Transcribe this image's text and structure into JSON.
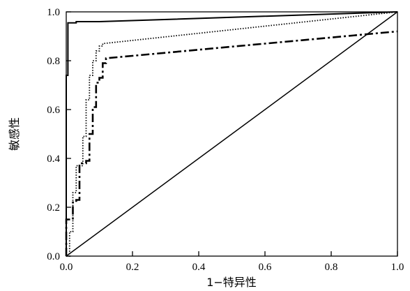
{
  "chart_data": {
    "type": "line",
    "title": "",
    "xlabel": "1−特异性",
    "ylabel": "敏感性",
    "xlim": [
      0,
      1
    ],
    "ylim": [
      0,
      1
    ],
    "x_ticks": [
      "0.0",
      "0.2",
      "0.4",
      "0.6",
      "0.8",
      "1.0"
    ],
    "y_ticks": [
      "0.0",
      "0.2",
      "0.4",
      "0.6",
      "0.8",
      "1.0"
    ],
    "grid": false,
    "legend": "none",
    "series": [
      {
        "style": "solid",
        "x": [
          0.0,
          0.0,
          0.0,
          0.005,
          0.005,
          0.03,
          0.03,
          0.1,
          1.0
        ],
        "y": [
          0.0,
          0.74,
          0.74,
          0.74,
          0.955,
          0.955,
          0.96,
          0.96,
          1.0
        ]
      },
      {
        "style": "dotted",
        "x": [
          0.0,
          0.01,
          0.01,
          0.02,
          0.02,
          0.03,
          0.03,
          0.05,
          0.05,
          0.06,
          0.06,
          0.07,
          0.07,
          0.08,
          0.08,
          0.09,
          0.09,
          0.1,
          0.1,
          0.11,
          0.11,
          1.0
        ],
        "y": [
          0.0,
          0.0,
          0.1,
          0.1,
          0.26,
          0.26,
          0.37,
          0.37,
          0.49,
          0.49,
          0.64,
          0.64,
          0.74,
          0.74,
          0.8,
          0.8,
          0.84,
          0.84,
          0.86,
          0.86,
          0.87,
          1.0
        ]
      },
      {
        "style": "dash-dot",
        "x": [
          0.0,
          0.0,
          0.02,
          0.02,
          0.03,
          0.03,
          0.04,
          0.04,
          0.06,
          0.06,
          0.07,
          0.07,
          0.08,
          0.08,
          0.09,
          0.09,
          0.1,
          0.1,
          0.11,
          0.11,
          0.12,
          0.12,
          1.0
        ],
        "y": [
          0.0,
          0.15,
          0.15,
          0.22,
          0.22,
          0.23,
          0.23,
          0.38,
          0.38,
          0.39,
          0.39,
          0.5,
          0.5,
          0.61,
          0.61,
          0.71,
          0.71,
          0.73,
          0.73,
          0.79,
          0.79,
          0.81,
          0.92
        ]
      },
      {
        "style": "reference",
        "x": [
          0.0,
          1.0
        ],
        "y": [
          0.0,
          1.0
        ]
      }
    ]
  }
}
